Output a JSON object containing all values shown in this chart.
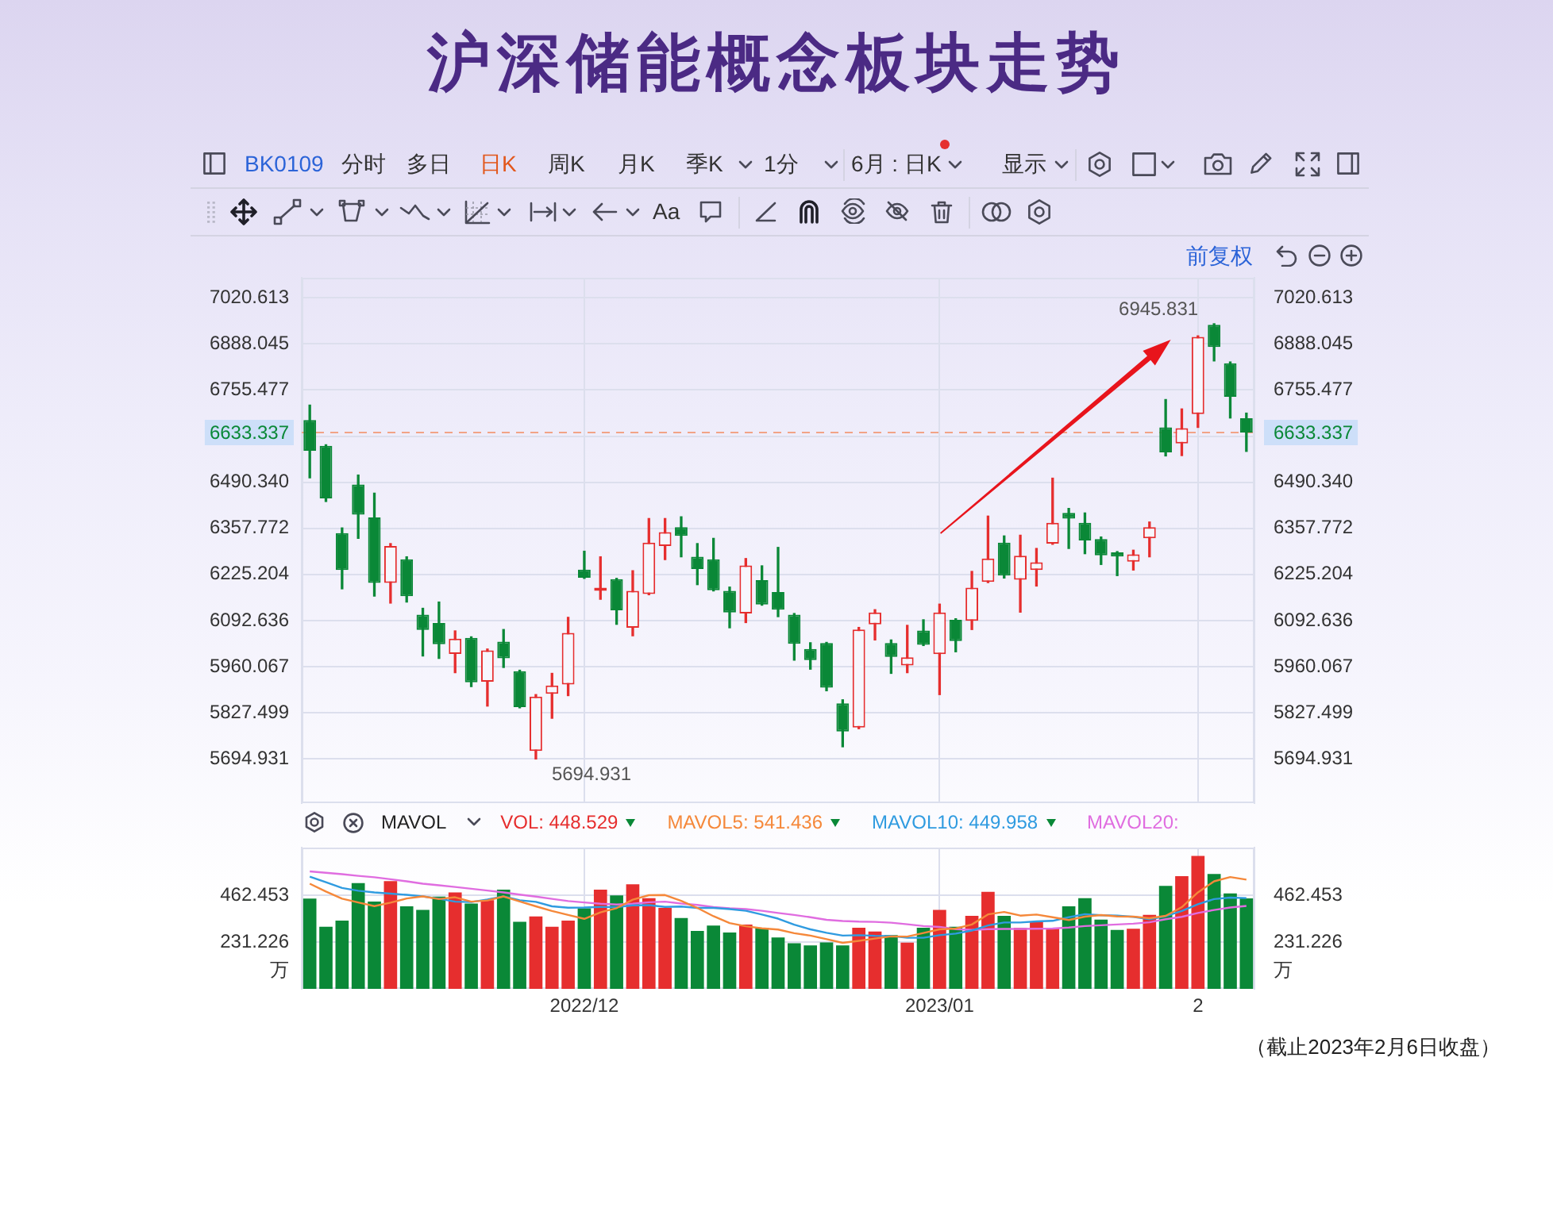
{
  "chart_data": [
    {
      "type": "candlestick",
      "title": "沪深储能概念板块走势",
      "categories": [
        null,
        null,
        null,
        null,
        null,
        null,
        null,
        null,
        null,
        null,
        null,
        null,
        null,
        null,
        null,
        null,
        null,
        "2022/12",
        null,
        null,
        null,
        null,
        null,
        null,
        null,
        null,
        null,
        null,
        null,
        null,
        null,
        null,
        null,
        null,
        null,
        null,
        null,
        null,
        null,
        "2023/01",
        null,
        null,
        null,
        null,
        null,
        null,
        null,
        null,
        null,
        null,
        null,
        null,
        null,
        null,
        null,
        "2",
        null,
        null,
        null
      ],
      "ohlc": [
        [
          6669,
          6712,
          6503,
          6581
        ],
        [
          6595,
          6598,
          6435,
          6444
        ],
        [
          6344,
          6359,
          6184,
          6238
        ],
        [
          6484,
          6511,
          6329,
          6397
        ],
        [
          6389,
          6459,
          6163,
          6201
        ],
        [
          6201,
          6314,
          6143,
          6307
        ],
        [
          6269,
          6276,
          6146,
          6163
        ],
        [
          6110,
          6128,
          5991,
          6066
        ],
        [
          6086,
          6146,
          5984,
          6025
        ],
        [
          5997,
          6063,
          5943,
          6041
        ],
        [
          6043,
          6046,
          5903,
          5915
        ],
        [
          5917,
          6011,
          5847,
          6007
        ],
        [
          6032,
          6067,
          5958,
          5984
        ],
        [
          5947,
          5950,
          5842,
          5844
        ],
        [
          5718,
          5880,
          5694.931,
          5874
        ],
        [
          5882,
          5941,
          5812,
          5906
        ],
        [
          5909,
          6102,
          5877,
          6057
        ],
        [
          6239,
          6292,
          6214,
          6216
        ],
        [
          6178,
          6276,
          6154,
          6187
        ],
        [
          6212,
          6214,
          6082,
          6122
        ],
        [
          6072,
          6236,
          6049,
          6178
        ],
        [
          6169,
          6386,
          6167,
          6317
        ],
        [
          6307,
          6386,
          6268,
          6347
        ],
        [
          6361,
          6391,
          6276,
          6336
        ],
        [
          6276,
          6314,
          6196,
          6241
        ],
        [
          6269,
          6329,
          6178,
          6180
        ],
        [
          6178,
          6189,
          6072,
          6116
        ],
        [
          6113,
          6271,
          6087,
          6251
        ],
        [
          6209,
          6250,
          6137,
          6139
        ],
        [
          6175,
          6303,
          6104,
          6124
        ],
        [
          6110,
          6113,
          5979,
          6026
        ],
        [
          6011,
          6029,
          5953,
          5979
        ],
        [
          6028,
          6030,
          5891,
          5900
        ],
        [
          5855,
          5865,
          5730,
          5774
        ],
        [
          5785,
          6073,
          5782,
          6067
        ],
        [
          6082,
          6124,
          6037,
          6116
        ],
        [
          6028,
          6037,
          5941,
          5988
        ],
        [
          5964,
          6079,
          5943,
          5987
        ],
        [
          6064,
          6095,
          6021,
          6023
        ],
        [
          5996,
          6140,
          5880,
          6116
        ],
        [
          6095,
          6098,
          6003,
          6034
        ],
        [
          6092,
          6234,
          6067,
          6187
        ],
        [
          6204,
          6393,
          6202,
          6271
        ],
        [
          6317,
          6336,
          6215,
          6222
        ],
        [
          6210,
          6338,
          6117,
          6279
        ],
        [
          6238,
          6300,
          6192,
          6260
        ],
        [
          6314,
          6502,
          6312,
          6374
        ],
        [
          6402,
          6415,
          6300,
          6386
        ],
        [
          6374,
          6402,
          6285,
          6323
        ],
        [
          6327,
          6333,
          6254,
          6280
        ],
        [
          6289,
          6291,
          6222,
          6277
        ],
        [
          6262,
          6295,
          6238,
          6283
        ],
        [
          6329,
          6376,
          6276,
          6361
        ],
        [
          6648,
          6728,
          6566,
          6576
        ],
        [
          6602,
          6701,
          6567,
          6646
        ],
        [
          6686,
          6911,
          6648,
          6908
        ],
        [
          6943,
          6945.831,
          6839,
          6879
        ],
        [
          6832,
          6836,
          6675,
          6736
        ],
        [
          6674,
          6689,
          6579,
          6633.337
        ]
      ],
      "colors": [
        "#0a8837",
        "#0a8837",
        "#0a8837",
        "#0a8837",
        "#0a8837",
        "#e62e2e",
        "#0a8837",
        "#0a8837",
        "#0a8837",
        "#e62e2e",
        "#0a8837",
        "#e62e2e",
        "#0a8837",
        "#0a8837",
        "#e62e2e",
        "#e62e2e",
        "#e62e2e",
        "#0a8837",
        "#e62e2e",
        "#0a8837",
        "#e62e2e",
        "#e62e2e",
        "#e62e2e",
        "#0a8837",
        "#0a8837",
        "#0a8837",
        "#0a8837",
        "#e62e2e",
        "#0a8837",
        "#0a8837",
        "#0a8837",
        "#0a8837",
        "#0a8837",
        "#0a8837",
        "#e62e2e",
        "#e62e2e",
        "#0a8837",
        "#e62e2e",
        "#0a8837",
        "#e62e2e",
        "#0a8837",
        "#e62e2e",
        "#e62e2e",
        "#0a8837",
        "#e62e2e",
        "#e62e2e",
        "#e62e2e",
        "#0a8837",
        "#0a8837",
        "#0a8837",
        "#0a8837",
        "#e62e2e",
        "#e62e2e",
        "#0a8837",
        "#e62e2e",
        "#e62e2e",
        "#0a8837",
        "#0a8837",
        "#0a8837"
      ],
      "ylim": [
        5568,
        7078
      ],
      "yticks": [
        5694.931,
        5827.499,
        5960.067,
        6092.636,
        6225.204,
        6357.772,
        {
          "value": 6490.34,
          "label": "6490.340"
        },
        {
          "value": 6622.909,
          "label": null
        },
        6755.477,
        6888.045,
        7020.613
      ],
      "y2lim": [
        5568,
        7078
      ],
      "y2ticks": [
        5694.931,
        5827.499,
        5960.067,
        6092.636,
        6225.204,
        6357.772,
        {
          "value": 6490.34,
          "label": "6490.340"
        },
        {
          "value": 6622.909,
          "label": null
        },
        6755.477,
        6888.045,
        7020.613
      ],
      "grid": true,
      "tick_labels": "y",
      "ref_lines": [
        {
          "axis": "y",
          "value": 6633.337,
          "label": "6633.337",
          "color": "#f2a386",
          "line_style": "dashed"
        }
      ],
      "annotations": [
        "BK0109",
        "分时",
        "多日",
        "日K",
        "周K",
        "月K",
        "季K",
        "1分",
        "6月 : 日K",
        "显示",
        "Aa",
        "前复权",
        "6945.831",
        "5694.931"
      ]
    },
    {
      "type": "bar",
      "categories": [
        null,
        null,
        null,
        null,
        null,
        null,
        null,
        null,
        null,
        null,
        null,
        null,
        null,
        null,
        null,
        null,
        null,
        "2022/12",
        null,
        null,
        null,
        null,
        null,
        null,
        null,
        null,
        null,
        null,
        null,
        null,
        null,
        null,
        null,
        null,
        null,
        null,
        null,
        null,
        null,
        "2023/01",
        null,
        null,
        null,
        null,
        null,
        null,
        null,
        null,
        null,
        null,
        null,
        null,
        null,
        null,
        null,
        "2",
        null,
        null,
        null
      ],
      "series": [
        {
          "name": "VOL: 448.529",
          "color": "#e62e2e",
          "colors": [
            "#0a8837",
            "#0a8837",
            "#0a8837",
            "#0a8837",
            "#0a8837",
            "#e62e2e",
            "#0a8837",
            "#0a8837",
            "#0a8837",
            "#e62e2e",
            "#0a8837",
            "#e62e2e",
            "#0a8837",
            "#0a8837",
            "#e62e2e",
            "#e62e2e",
            "#e62e2e",
            "#0a8837",
            "#e62e2e",
            "#0a8837",
            "#e62e2e",
            "#e62e2e",
            "#e62e2e",
            "#0a8837",
            "#0a8837",
            "#0a8837",
            "#0a8837",
            "#e62e2e",
            "#0a8837",
            "#0a8837",
            "#0a8837",
            "#0a8837",
            "#0a8837",
            "#0a8837",
            "#e62e2e",
            "#e62e2e",
            "#0a8837",
            "#e62e2e",
            "#0a8837",
            "#e62e2e",
            "#0a8837",
            "#e62e2e",
            "#e62e2e",
            "#0a8837",
            "#e62e2e",
            "#e62e2e",
            "#e62e2e",
            "#0a8837",
            "#0a8837",
            "#0a8837",
            "#0a8837",
            "#e62e2e",
            "#e62e2e",
            "#0a8837",
            "#e62e2e",
            "#e62e2e",
            "#0a8837",
            "#0a8837",
            "#0a8837"
          ],
          "values": [
            447,
            308,
            338,
            524,
            433,
            534,
            409,
            391,
            457,
            478,
            423,
            439,
            492,
            332,
            359,
            308,
            338,
            399,
            492,
            463,
            518,
            449,
            401,
            351,
            287,
            314,
            279,
            319,
            303,
            255,
            226,
            215,
            230,
            215,
            303,
            284,
            266,
            229,
            303,
            391,
            308,
            362,
            481,
            362,
            303,
            330,
            300,
            409,
            449,
            343,
            292,
            298,
            367,
            510,
            558,
            659,
            569,
            473,
            448.529
          ]
        },
        {
          "name": "MAVOL5: 541.436",
          "type": "line",
          "color": "#f5883a",
          "values": [
            521,
            482,
            447,
            428,
            410,
            427,
            448,
            458,
            445,
            454,
            432,
            438,
            458,
            433,
            409,
            386,
            366,
            347,
            379,
            400,
            442,
            464,
            465,
            436,
            401,
            360,
            326,
            310,
            300,
            294,
            276,
            264,
            246,
            228,
            238,
            249,
            260,
            259,
            277,
            295,
            299,
            319,
            369,
            381,
            363,
            368,
            355,
            341,
            358,
            366,
            359,
            358,
            350,
            362,
            405,
            478,
            533,
            554,
            541.436
          ]
        },
        {
          "name": "MAVOL10: 449.958",
          "type": "line",
          "color": "#2f9be0",
          "values": [
            556,
            528,
            500,
            486,
            478,
            472,
            466,
            458,
            447,
            432,
            430,
            443,
            458,
            439,
            431,
            409,
            402,
            403,
            406,
            405,
            414,
            415,
            406,
            408,
            401,
            401,
            395,
            387,
            368,
            348,
            318,
            295,
            278,
            264,
            266,
            263,
            262,
            253,
            253,
            266,
            274,
            289,
            314,
            329,
            329,
            334,
            337,
            355,
            370,
            365,
            363,
            357,
            345,
            360,
            386,
            419,
            445,
            452,
            449.958
          ]
        },
        {
          "name": "MAVOL20:",
          "type": "line",
          "color": "#e06de0",
          "values": [
            582,
            575,
            568,
            560,
            553,
            543,
            533,
            521,
            513,
            505,
            496,
            487,
            478,
            467,
            457,
            446,
            435,
            428,
            422,
            418,
            422,
            429,
            432,
            423,
            416,
            405,
            399,
            395,
            387,
            376,
            366,
            355,
            342,
            336,
            333,
            332,
            328,
            320,
            311,
            307,
            296,
            292,
            296,
            297,
            297,
            298,
            299,
            304,
            311,
            315,
            319,
            323,
            330,
            345,
            357,
            376,
            391,
            403,
            411
          ]
        }
      ],
      "ylabel": "万",
      "y2label": "万",
      "ylim": [
        0,
        700
      ],
      "yticks": [
        231.226,
        462.453
      ],
      "y2lim": [
        0,
        700
      ],
      "y2ticks": [
        231.226,
        462.453
      ],
      "grid": true,
      "legend": "top",
      "legend_title": "MAVOL",
      "marker": "none",
      "annotations": [
        "（截止2023年2月6日收盘）"
      ]
    }
  ]
}
